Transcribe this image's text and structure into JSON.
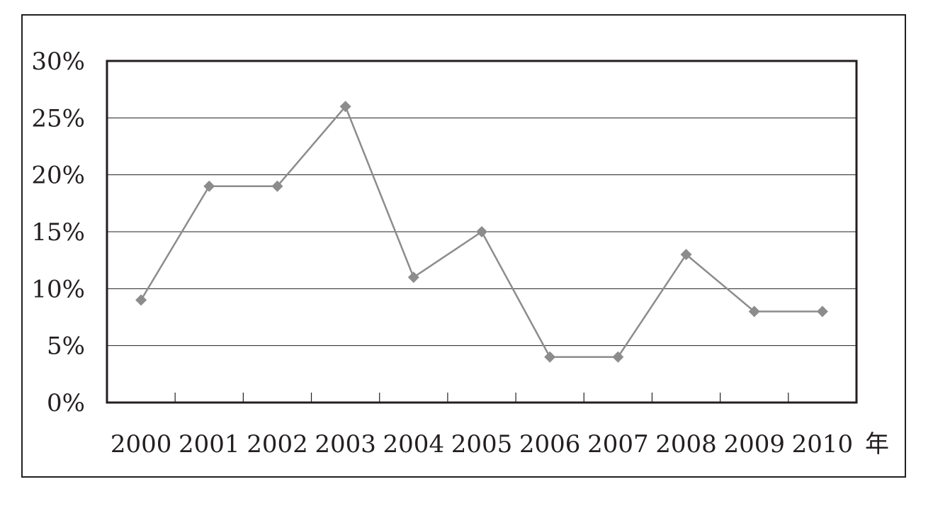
{
  "chart_data": {
    "type": "line",
    "title": "",
    "xlabel": "年",
    "ylabel": "",
    "categories": [
      "2000",
      "2001",
      "2002",
      "2003",
      "2004",
      "2005",
      "2006",
      "2007",
      "2008",
      "2009",
      "2010"
    ],
    "series": [
      {
        "values": [
          9,
          19,
          19,
          26,
          11,
          15,
          4,
          4,
          13,
          8,
          8
        ]
      }
    ],
    "y_ticks": [
      "0%",
      "5%",
      "10%",
      "15%",
      "20%",
      "25%",
      "30%"
    ],
    "ylim": [
      0,
      30
    ],
    "y_unit": "%",
    "grid": "horizontal",
    "marker": "diamond",
    "colors": {
      "line": "#8c8c8c",
      "marker": "#8c8c8c",
      "axis": "#231f20",
      "grid": "#231f20"
    }
  }
}
